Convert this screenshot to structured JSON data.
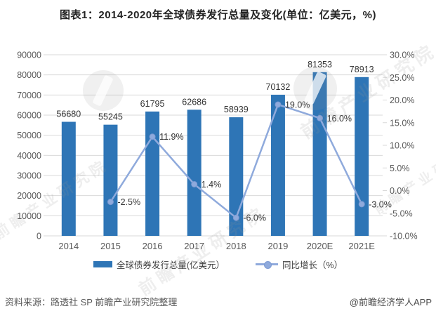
{
  "title": "图表1：2014-2020年全球债券发行总量及变化(单位：亿美元，%)",
  "chart_data": {
    "type": "combo-bar-line",
    "categories": [
      "2014",
      "2015",
      "2016",
      "2017",
      "2018",
      "2019",
      "2020E",
      "2021E"
    ],
    "series": [
      {
        "name": "全球债券发行总量(亿美元）",
        "type": "bar",
        "axis": "left",
        "values": [
          56680,
          55245,
          61795,
          62686,
          58939,
          70132,
          81353,
          78913
        ],
        "value_labels": [
          "56680",
          "55245",
          "61795",
          "62686",
          "58939",
          "70132",
          "81353",
          "78913"
        ],
        "color": "#2E75B6"
      },
      {
        "name": "同比增长（%）",
        "type": "line",
        "axis": "right",
        "values": [
          null,
          -2.5,
          11.9,
          1.4,
          -6.0,
          19.0,
          16.0,
          -3.0
        ],
        "point_labels": [
          "",
          "-2.5%",
          "11.9%",
          "1.4%",
          "-6.0%",
          "19.0%",
          "16.0%",
          "-3.0%"
        ],
        "color": "#8FAADC",
        "marker_stroke": "#7C9AD3"
      }
    ],
    "left_axis": {
      "min": 0,
      "max": 90000,
      "step": 10000,
      "tick_labels": [
        "0",
        "10000",
        "20000",
        "30000",
        "40000",
        "50000",
        "60000",
        "70000",
        "80000",
        "90000"
      ]
    },
    "right_axis": {
      "min": -10,
      "max": 30,
      "step": 5,
      "tick_labels": [
        "30.0%",
        "25.0%",
        "20.0%",
        "15.0%",
        "10.0%",
        "5.0%",
        "0.0%",
        "-5.0%",
        "-10.0%"
      ]
    },
    "grid": true,
    "grid_color": "#D9D9D9",
    "axis_text_color": "#595959",
    "label_text_color": "#333333",
    "legend_position": "bottom"
  },
  "watermark": {
    "brand_text": "前瞻产业研究院"
  },
  "footer": {
    "source": "资料来源：路透社 SP 前瞻产业研究院整理",
    "credit": "@前瞻经济学人APP"
  }
}
